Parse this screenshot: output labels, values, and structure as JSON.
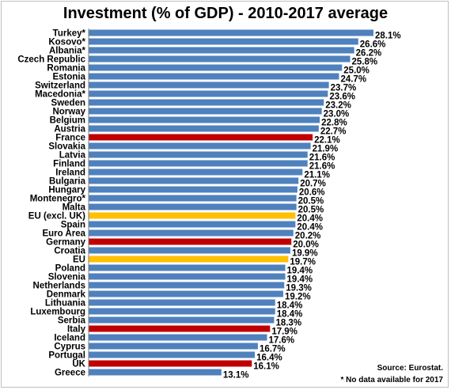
{
  "chart_data": {
    "type": "bar",
    "orientation": "horizontal",
    "title": "Investment (% of GDP) - 2010-2017 average",
    "categories": [
      "Turkey*",
      "Kosovo*",
      "Albania*",
      "Czech Republic",
      "Romania",
      "Estonia",
      "Switzerland",
      "Macedonia*",
      "Sweden",
      "Norway",
      "Belgium",
      "Austria",
      "France",
      "Slovakia",
      "Latvia",
      "Finland",
      "Ireland",
      "Bulgaria",
      "Hungary",
      "Montenegro*",
      "Malta",
      "EU (excl. UK)",
      "Spain",
      "Euro Area",
      "Germany",
      "Croatia",
      "EU",
      "Poland",
      "Slovenia",
      "Netherlands",
      "Denmark",
      "Lithuania",
      "Luxembourg",
      "Serbia",
      "Italy",
      "Iceland",
      "Cyprus",
      "Portugal",
      "UK",
      "Greece"
    ],
    "values": [
      28.1,
      26.6,
      26.2,
      25.8,
      25.0,
      24.7,
      23.7,
      23.6,
      23.2,
      23.0,
      22.8,
      22.7,
      22.1,
      21.9,
      21.6,
      21.6,
      21.1,
      20.7,
      20.6,
      20.5,
      20.5,
      20.4,
      20.4,
      20.2,
      20.0,
      19.9,
      19.7,
      19.4,
      19.4,
      19.3,
      19.2,
      18.4,
      18.4,
      18.3,
      17.9,
      17.6,
      16.7,
      16.4,
      16.1,
      13.1
    ],
    "value_labels": [
      "28.1%",
      "26.6%",
      "26.2%",
      "25.8%",
      "25.0%",
      "24.7%",
      "23.7%",
      "23.6%",
      "23.2%",
      "23.0%",
      "22.8%",
      "22.7%",
      "22.1%",
      "21.9%",
      "21.6%",
      "21.6%",
      "21.1%",
      "20.7%",
      "20.6%",
      "20.5%",
      "20.5%",
      "20.4%",
      "20.4%",
      "20.2%",
      "20.0%",
      "19.9%",
      "19.7%",
      "19.4%",
      "19.4%",
      "19.3%",
      "19.2%",
      "18.4%",
      "18.4%",
      "18.3%",
      "17.9%",
      "17.6%",
      "16.7%",
      "16.4%",
      "16.1%",
      "13.1%"
    ],
    "bar_colors": [
      "#4f81bd",
      "#4f81bd",
      "#4f81bd",
      "#4f81bd",
      "#4f81bd",
      "#4f81bd",
      "#4f81bd",
      "#4f81bd",
      "#4f81bd",
      "#4f81bd",
      "#4f81bd",
      "#4f81bd",
      "#c00000",
      "#4f81bd",
      "#4f81bd",
      "#4f81bd",
      "#4f81bd",
      "#4f81bd",
      "#4f81bd",
      "#4f81bd",
      "#4f81bd",
      "#ffc000",
      "#4f81bd",
      "#4f81bd",
      "#c00000",
      "#4f81bd",
      "#ffc000",
      "#4f81bd",
      "#4f81bd",
      "#4f81bd",
      "#4f81bd",
      "#4f81bd",
      "#4f81bd",
      "#4f81bd",
      "#c00000",
      "#4f81bd",
      "#4f81bd",
      "#4f81bd",
      "#c00000",
      "#4f81bd"
    ],
    "xlim": [
      0,
      28.1
    ],
    "grid": false,
    "legend": "none",
    "notes": {
      "source": "Source: Eurostat.",
      "footnote": "* No data available for 2017"
    }
  }
}
